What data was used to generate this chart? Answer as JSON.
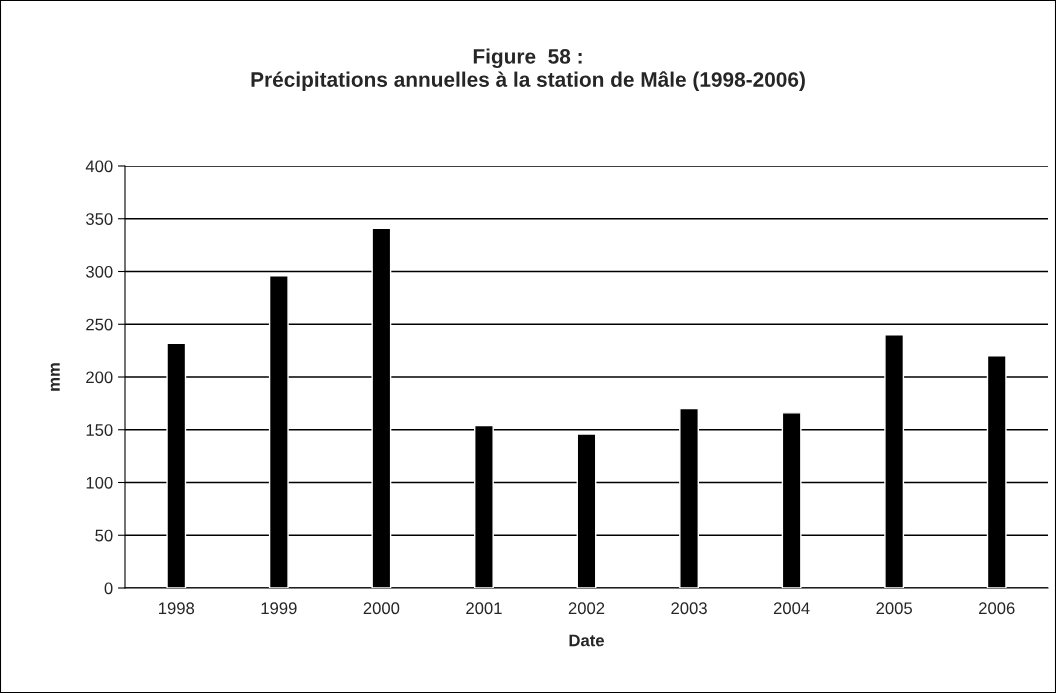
{
  "chart_data": {
    "type": "bar",
    "title": "Figure  58 :\nPrécipitations annuelles à la station de Mâle (1998-2006)",
    "xlabel": "Date",
    "ylabel": "mm",
    "categories": [
      "1998",
      "1999",
      "2000",
      "2001",
      "2002",
      "2003",
      "2004",
      "2005",
      "2006"
    ],
    "values": [
      232,
      296,
      341,
      154,
      146,
      170,
      166,
      240,
      220
    ],
    "color": "#000000",
    "ylim": [
      0,
      400
    ],
    "yticks": [
      0,
      50,
      100,
      150,
      200,
      250,
      300,
      350,
      400
    ],
    "grid": "y",
    "legend": false
  }
}
